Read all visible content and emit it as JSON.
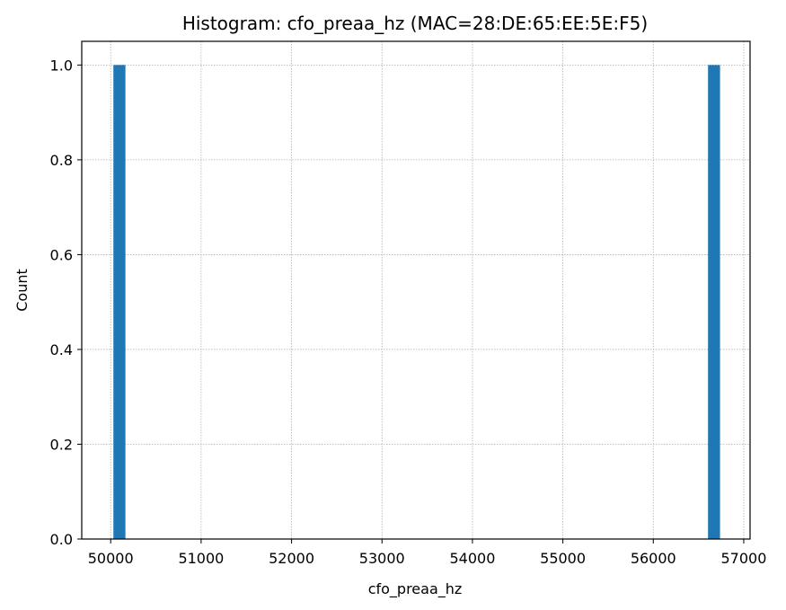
{
  "chart_data": {
    "type": "bar",
    "title": "Histogram: cfo_preaa_hz (MAC=28:DE:65:EE:5E:F5)",
    "xlabel": "cfo_preaa_hz",
    "ylabel": "Count",
    "xlim": [
      49680,
      57070
    ],
    "ylim": [
      0,
      1.05
    ],
    "xticks": [
      50000,
      51000,
      52000,
      53000,
      54000,
      55000,
      56000,
      57000
    ],
    "yticks": [
      0.0,
      0.2,
      0.4,
      0.6,
      0.8,
      1.0
    ],
    "ytick_labels": [
      "0.0",
      "0.2",
      "0.4",
      "0.6",
      "0.8",
      "1.0"
    ],
    "bin_width": 133,
    "bars": [
      {
        "x_start": 50030,
        "x_end": 50163,
        "count": 1
      },
      {
        "x_start": 56605,
        "x_end": 56738,
        "count": 1
      }
    ],
    "bar_color": "#1f77b4",
    "grid": true
  }
}
